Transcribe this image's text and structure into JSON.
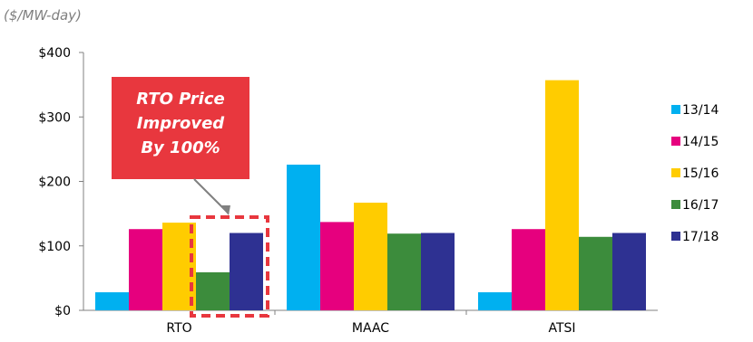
{
  "chart_data": {
    "type": "bar",
    "units_label": "($/MW-day)",
    "categories": [
      "RTO",
      "MAAC",
      "ATSI"
    ],
    "series": [
      {
        "name": "13/14",
        "color": "#00b0f0",
        "values": [
          28,
          226,
          28
        ]
      },
      {
        "name": "14/15",
        "color": "#e6007e",
        "values": [
          126,
          137,
          126
        ]
      },
      {
        "name": "15/16",
        "color": "#ffcc00",
        "values": [
          136,
          167,
          357
        ]
      },
      {
        "name": "16/17",
        "color": "#3c8c3c",
        "values": [
          59,
          119,
          114
        ]
      },
      {
        "name": "17/18",
        "color": "#2e3192",
        "values": [
          120,
          120,
          120
        ]
      }
    ],
    "ylim": [
      0,
      400
    ],
    "yticks": [
      0,
      100,
      200,
      300,
      400
    ],
    "ytick_labels": [
      "$0",
      "$100",
      "$200",
      "$300",
      "$400"
    ],
    "grid": false,
    "legend_position": "right",
    "annotation": {
      "lines": [
        "RTO Price",
        "Improved",
        "By 100%"
      ],
      "box_color": "#e8373e",
      "text_color": "#ffffff",
      "highlight_color": "#e8373e",
      "target_category": "RTO",
      "target_series": [
        "16/17",
        "17/18"
      ]
    }
  }
}
